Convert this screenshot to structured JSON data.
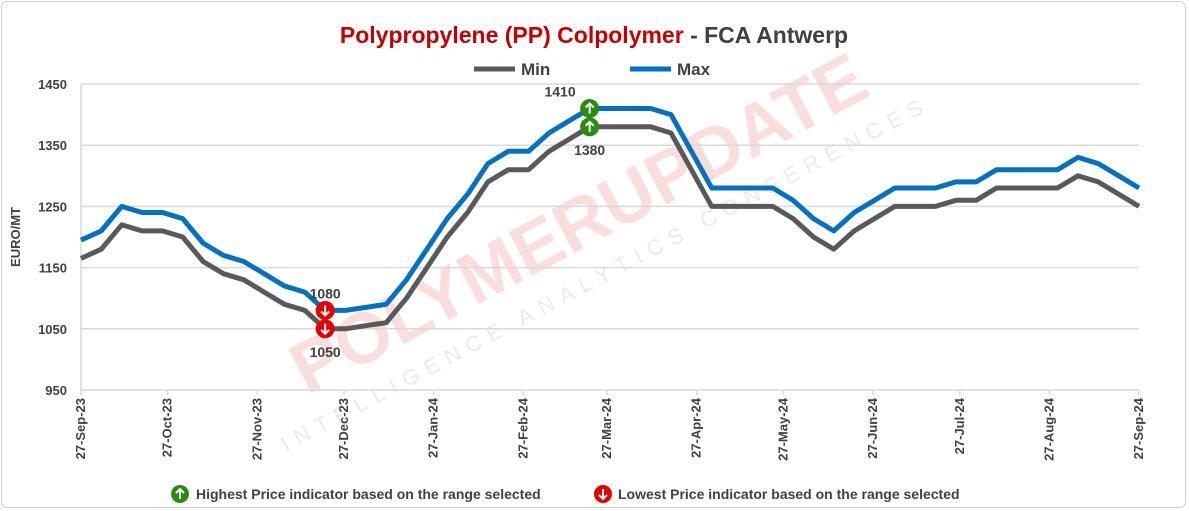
{
  "chart_data": {
    "type": "line",
    "title": {
      "main": "Polypropylene (PP) Colpolymer",
      "suffix": " - FCA Antwerp"
    },
    "ylabel": "EURO/MT",
    "xlabel": "",
    "ylim": [
      950,
      1450
    ],
    "yticks": [
      950,
      1050,
      1150,
      1250,
      1350,
      1450
    ],
    "grid": true,
    "legend_placement": "top-center",
    "date_range": [
      "2023-09-27",
      "2024-09-27"
    ],
    "xticks": [
      {
        "label": "27-Sep-23",
        "date": "2023-09-27"
      },
      {
        "label": "27-Oct-23",
        "date": "2023-10-27"
      },
      {
        "label": "27-Nov-23",
        "date": "2023-11-27"
      },
      {
        "label": "27-Dec-23",
        "date": "2023-12-27"
      },
      {
        "label": "27-Jan-24",
        "date": "2024-01-27"
      },
      {
        "label": "27-Feb-24",
        "date": "2024-02-27"
      },
      {
        "label": "27-Mar-24",
        "date": "2024-03-27"
      },
      {
        "label": "27-Apr-24",
        "date": "2024-04-27"
      },
      {
        "label": "27-May-24",
        "date": "2024-05-27"
      },
      {
        "label": "27-Jun-24",
        "date": "2024-06-27"
      },
      {
        "label": "27-Jul-24",
        "date": "2024-07-27"
      },
      {
        "label": "27-Aug-24",
        "date": "2024-08-27"
      },
      {
        "label": "27-Sep-24",
        "date": "2024-09-27"
      }
    ],
    "series": [
      {
        "name": "Min",
        "color": "#595959",
        "values": [
          1165,
          1180,
          1220,
          1210,
          1210,
          1200,
          1160,
          1140,
          1130,
          1110,
          1090,
          1080,
          1050,
          1050,
          1055,
          1060,
          1100,
          1150,
          1200,
          1240,
          1290,
          1310,
          1310,
          1340,
          1360,
          1380,
          1380,
          1380,
          1380,
          1370,
          1310,
          1250,
          1250,
          1250,
          1250,
          1230,
          1200,
          1180,
          1210,
          1230,
          1250,
          1250,
          1250,
          1260,
          1260,
          1280,
          1280,
          1280,
          1280,
          1300,
          1290,
          1270,
          1250
        ]
      },
      {
        "name": "Max",
        "color": "#0070C0",
        "values": [
          1195,
          1210,
          1250,
          1240,
          1240,
          1230,
          1190,
          1170,
          1160,
          1140,
          1120,
          1110,
          1080,
          1080,
          1085,
          1090,
          1130,
          1180,
          1230,
          1270,
          1320,
          1340,
          1340,
          1370,
          1390,
          1410,
          1410,
          1410,
          1410,
          1400,
          1340,
          1280,
          1280,
          1280,
          1280,
          1260,
          1230,
          1210,
          1240,
          1260,
          1280,
          1280,
          1280,
          1290,
          1290,
          1310,
          1310,
          1310,
          1310,
          1330,
          1320,
          1300,
          1280
        ]
      }
    ],
    "annotations": [
      {
        "series": "Max",
        "index": 25,
        "value": "1410",
        "type": "high"
      },
      {
        "series": "Min",
        "index": 25,
        "value": "1380",
        "type": "high"
      },
      {
        "series": "Max",
        "index": 12,
        "value": "1080",
        "type": "low"
      },
      {
        "series": "Min",
        "index": 12,
        "value": "1050",
        "type": "low"
      }
    ]
  },
  "colors": {
    "title_red": "#C00000",
    "title_gray": "#404040",
    "high": "#2E8B12",
    "low": "#E00000",
    "grid": "#D9D9D9"
  },
  "footer": {
    "high_label": "Highest Price indicator based on the range selected",
    "low_label": "Lowest Price indicator based on the range selected"
  },
  "watermark": {
    "brand": "POLYMERUPDATE",
    "tagline": "INTELLIGENCE  ANALYTICS  CONFERENCES"
  }
}
